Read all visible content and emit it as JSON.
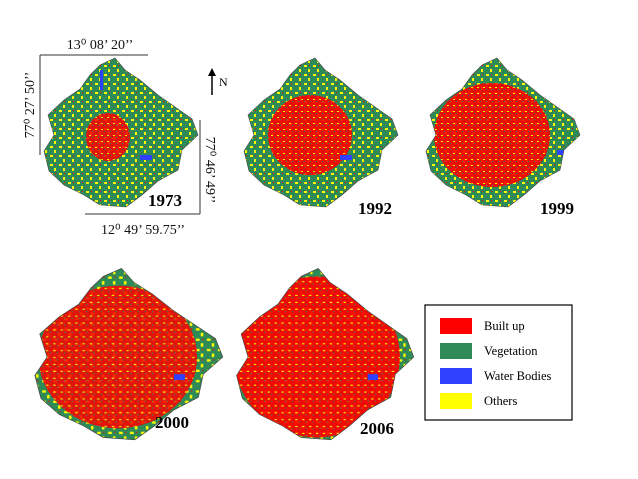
{
  "map_labels": {
    "coords": {
      "top": "13⁰ 08’ 20’’",
      "left": "77⁰ 27’ 50’’",
      "right": "77⁰ 46’ 49’’",
      "bottom": "12⁰ 49’ 59.75’’"
    },
    "north": "N",
    "years": [
      "1973",
      "1992",
      "1999",
      "2000",
      "2006"
    ]
  },
  "legend": {
    "items": [
      {
        "label": "Built up",
        "color": "#ff0000"
      },
      {
        "label": "Vegetation",
        "color": "#2e8b57"
      },
      {
        "label": "Water Bodies",
        "color": "#3040ff"
      },
      {
        "label": "Others",
        "color": "#ffff00"
      }
    ]
  }
}
